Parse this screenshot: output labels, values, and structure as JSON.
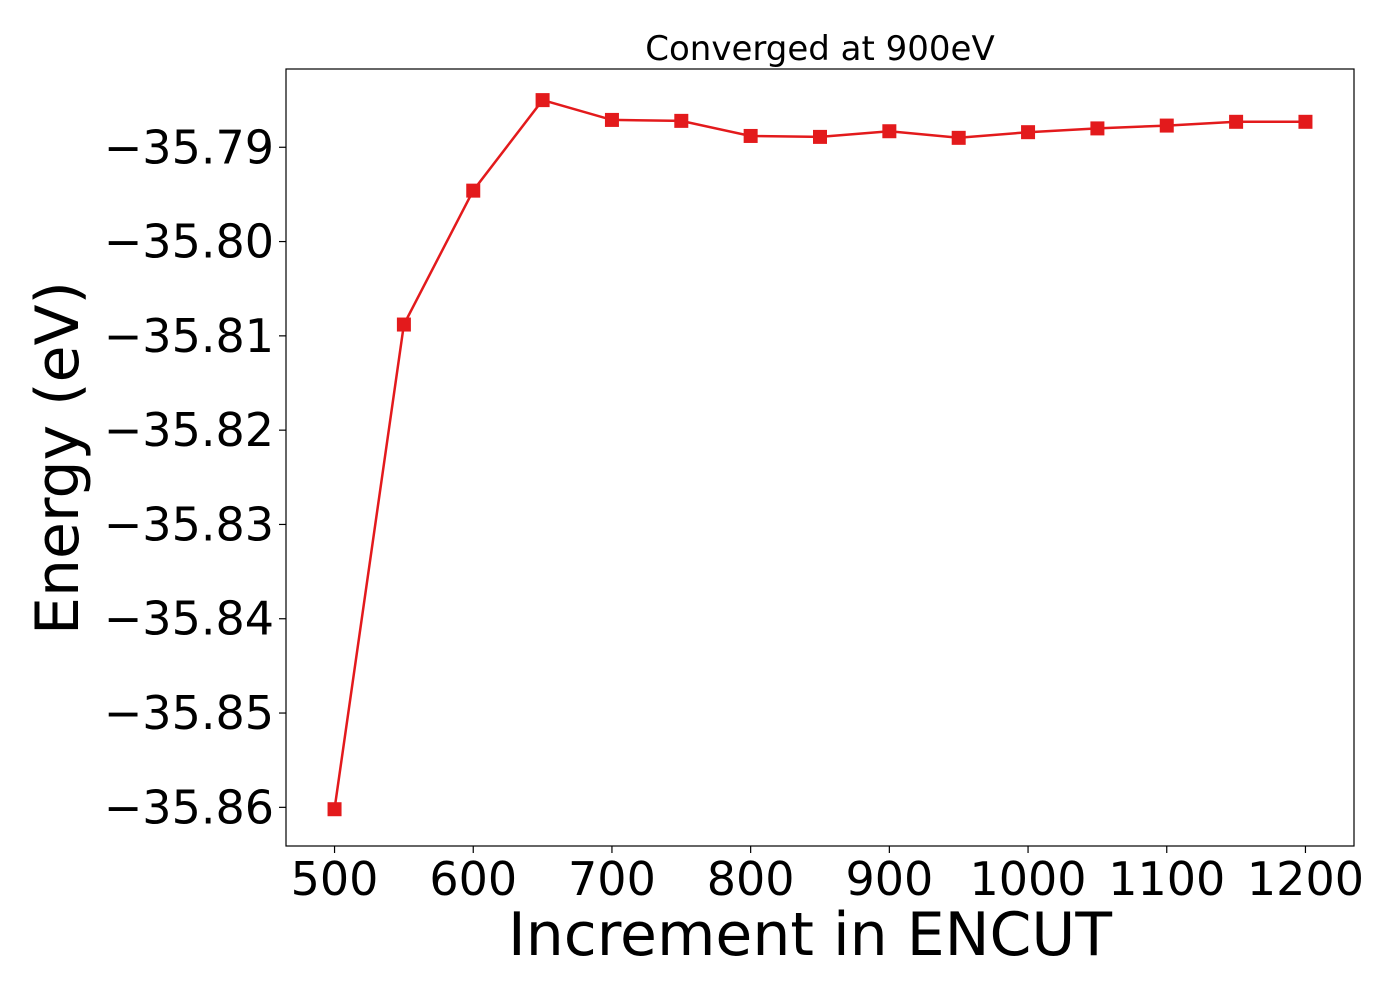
{
  "chart_data": {
    "type": "line",
    "title": "Converged at 900eV",
    "xlabel": "Increment in ENCUT",
    "ylabel": "Energy (eV)",
    "x": [
      500,
      550,
      600,
      650,
      700,
      750,
      800,
      850,
      900,
      950,
      1000,
      1050,
      1100,
      1150,
      1200
    ],
    "series": [
      {
        "values": [
          -35.8602,
          -35.8088,
          -35.7946,
          -35.785,
          -35.7871,
          -35.7872,
          -35.7888,
          -35.7889,
          -35.7883,
          -35.789,
          -35.7884,
          -35.788,
          -35.7877,
          -35.7873,
          -35.7873
        ],
        "color": "#e31a1c",
        "marker": "square"
      }
    ],
    "xlim": [
      465,
      1235
    ],
    "ylim": [
      -35.8641,
      -35.7817
    ],
    "xticks": [
      500,
      600,
      700,
      800,
      900,
      1000,
      1100,
      1200
    ],
    "yticks": [
      -35.79,
      -35.8,
      -35.81,
      -35.82,
      -35.83,
      -35.84,
      -35.85,
      -35.86
    ],
    "xtick_labels": [
      "500",
      "600",
      "700",
      "800",
      "900",
      "1000",
      "1100",
      "1200"
    ],
    "ytick_labels": [
      "−35.79",
      "−35.80",
      "−35.81",
      "−35.82",
      "−35.83",
      "−35.84",
      "−35.85",
      "−35.86"
    ],
    "grid": false,
    "legend": false
  }
}
